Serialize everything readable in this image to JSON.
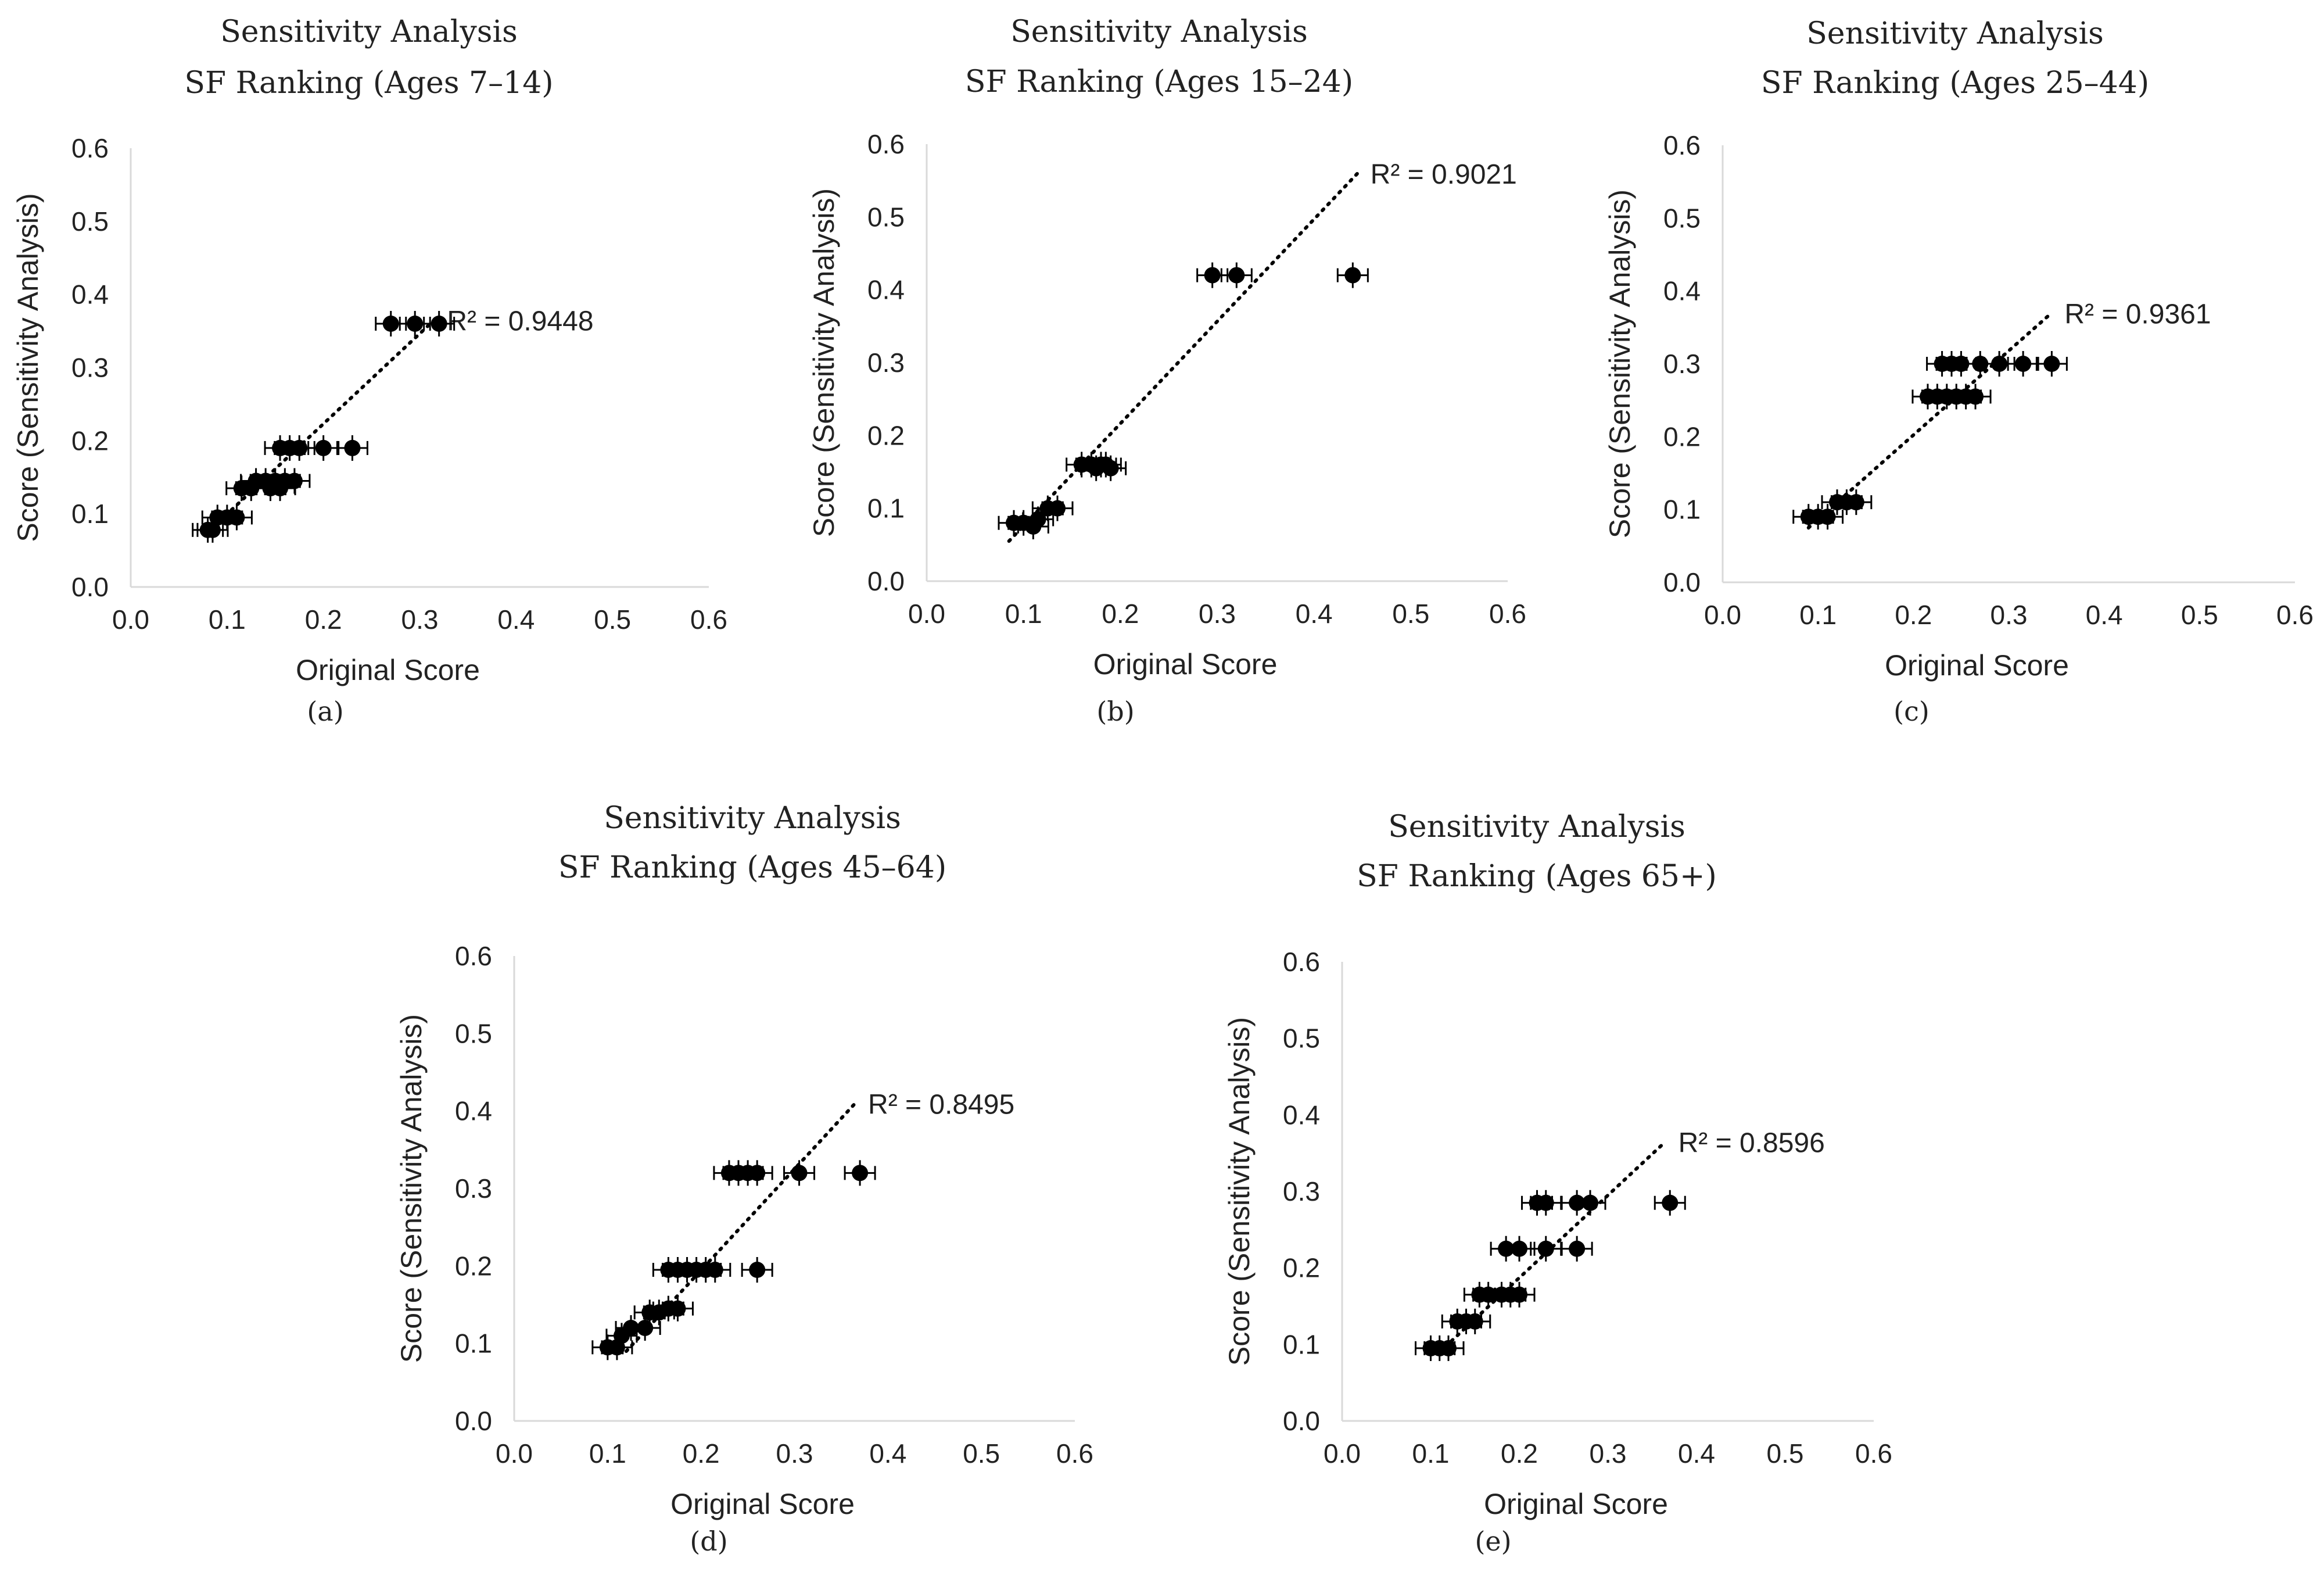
{
  "figure": {
    "point_color": "#000000",
    "axis_color": "#d9d9d9",
    "trend_color": "#000000"
  },
  "chart_data": [
    {
      "id": "a",
      "type": "scatter",
      "title_line1": "Sensitivity Analysis",
      "title_line2": "SF Ranking (Ages 7–14)",
      "xlabel": "Original Score",
      "ylabel": "Score (Sensitivity Analysis)",
      "caption": "(a)",
      "xlim": [
        0,
        0.6
      ],
      "ylim": [
        0,
        0.6
      ],
      "xticks": [
        "0.0",
        "0.1",
        "0.2",
        "0.3",
        "0.4",
        "0.5",
        "0.6"
      ],
      "yticks": [
        "0.0",
        "0.1",
        "0.2",
        "0.3",
        "0.4",
        "0.5",
        "0.6"
      ],
      "r2_label": "R² = 0.9448",
      "trendline": [
        [
          0.08,
          0.075
        ],
        [
          0.315,
          0.365
        ]
      ],
      "points": [
        [
          0.08,
          0.078
        ],
        [
          0.085,
          0.078
        ],
        [
          0.09,
          0.095
        ],
        [
          0.1,
          0.095
        ],
        [
          0.11,
          0.095
        ],
        [
          0.115,
          0.135
        ],
        [
          0.125,
          0.135
        ],
        [
          0.13,
          0.145
        ],
        [
          0.14,
          0.145
        ],
        [
          0.145,
          0.135
        ],
        [
          0.15,
          0.145
        ],
        [
          0.155,
          0.135
        ],
        [
          0.16,
          0.145
        ],
        [
          0.17,
          0.145
        ],
        [
          0.155,
          0.19
        ],
        [
          0.165,
          0.19
        ],
        [
          0.175,
          0.19
        ],
        [
          0.2,
          0.19
        ],
        [
          0.23,
          0.19
        ],
        [
          0.27,
          0.36
        ],
        [
          0.295,
          0.36
        ],
        [
          0.32,
          0.36
        ]
      ]
    },
    {
      "id": "b",
      "type": "scatter",
      "title_line1": "Sensitivity Analysis",
      "title_line2": "SF Ranking (Ages 15–24)",
      "xlabel": "Original Score",
      "ylabel": "Score (Sensitivity Analysis)",
      "caption": "(b)",
      "xlim": [
        0,
        0.6
      ],
      "ylim": [
        0,
        0.6
      ],
      "xticks": [
        "0.0",
        "0.1",
        "0.2",
        "0.3",
        "0.4",
        "0.5",
        "0.6"
      ],
      "yticks": [
        "0.0",
        "0.1",
        "0.2",
        "0.3",
        "0.4",
        "0.5",
        "0.6"
      ],
      "r2_label": "R² = 0.9021",
      "trendline": [
        [
          0.085,
          0.055
        ],
        [
          0.445,
          0.56
        ]
      ],
      "points": [
        [
          0.09,
          0.08
        ],
        [
          0.1,
          0.08
        ],
        [
          0.11,
          0.075
        ],
        [
          0.115,
          0.085
        ],
        [
          0.125,
          0.1
        ],
        [
          0.135,
          0.1
        ],
        [
          0.16,
          0.16
        ],
        [
          0.17,
          0.16
        ],
        [
          0.175,
          0.155
        ],
        [
          0.18,
          0.16
        ],
        [
          0.185,
          0.16
        ],
        [
          0.19,
          0.155
        ],
        [
          0.295,
          0.42
        ],
        [
          0.32,
          0.42
        ],
        [
          0.44,
          0.42
        ]
      ]
    },
    {
      "id": "c",
      "type": "scatter",
      "title_line1": "Sensitivity Analysis",
      "title_line2": "SF Ranking (Ages 25–44)",
      "xlabel": "Original Score",
      "ylabel": "Score (Sensitivity Analysis)",
      "caption": "(c)",
      "xlim": [
        0,
        0.6
      ],
      "ylim": [
        0,
        0.6
      ],
      "xticks": [
        "0.0",
        "0.1",
        "0.2",
        "0.3",
        "0.4",
        "0.5",
        "0.6"
      ],
      "yticks": [
        "0.0",
        "0.1",
        "0.2",
        "0.3",
        "0.4",
        "0.5",
        "0.6"
      ],
      "r2_label": "R² = 0.9361",
      "trendline": [
        [
          0.09,
          0.075
        ],
        [
          0.345,
          0.37
        ]
      ],
      "points": [
        [
          0.09,
          0.09
        ],
        [
          0.1,
          0.09
        ],
        [
          0.11,
          0.09
        ],
        [
          0.12,
          0.11
        ],
        [
          0.13,
          0.11
        ],
        [
          0.14,
          0.11
        ],
        [
          0.215,
          0.255
        ],
        [
          0.225,
          0.255
        ],
        [
          0.235,
          0.255
        ],
        [
          0.245,
          0.255
        ],
        [
          0.255,
          0.255
        ],
        [
          0.265,
          0.255
        ],
        [
          0.23,
          0.3
        ],
        [
          0.24,
          0.3
        ],
        [
          0.25,
          0.3
        ],
        [
          0.27,
          0.3
        ],
        [
          0.29,
          0.3
        ],
        [
          0.315,
          0.3
        ],
        [
          0.345,
          0.3
        ]
      ]
    },
    {
      "id": "d",
      "type": "scatter",
      "title_line1": "Sensitivity Analysis",
      "title_line2": "SF Ranking (Ages 45–64)",
      "xlabel": "Original Score",
      "ylabel": "Score (Sensitivity Analysis)",
      "caption": "(d)",
      "xlim": [
        0,
        0.6
      ],
      "ylim": [
        0,
        0.6
      ],
      "xticks": [
        "0.0",
        "0.1",
        "0.2",
        "0.3",
        "0.4",
        "0.5",
        "0.6"
      ],
      "yticks": [
        "0.0",
        "0.1",
        "0.2",
        "0.3",
        "0.4",
        "0.5",
        "0.6"
      ],
      "r2_label": "R² = 0.8495",
      "trendline": [
        [
          0.12,
          0.09
        ],
        [
          0.365,
          0.41
        ]
      ],
      "points": [
        [
          0.1,
          0.095
        ],
        [
          0.11,
          0.095
        ],
        [
          0.115,
          0.11
        ],
        [
          0.125,
          0.12
        ],
        [
          0.14,
          0.12
        ],
        [
          0.145,
          0.14
        ],
        [
          0.155,
          0.14
        ],
        [
          0.165,
          0.145
        ],
        [
          0.175,
          0.145
        ],
        [
          0.165,
          0.195
        ],
        [
          0.175,
          0.195
        ],
        [
          0.185,
          0.195
        ],
        [
          0.195,
          0.195
        ],
        [
          0.205,
          0.195
        ],
        [
          0.215,
          0.195
        ],
        [
          0.26,
          0.195
        ],
        [
          0.23,
          0.32
        ],
        [
          0.24,
          0.32
        ],
        [
          0.25,
          0.32
        ],
        [
          0.26,
          0.32
        ],
        [
          0.305,
          0.32
        ],
        [
          0.37,
          0.32
        ]
      ]
    },
    {
      "id": "e",
      "type": "scatter",
      "title_line1": "Sensitivity Analysis",
      "title_line2": "SF Ranking (Ages 65+)",
      "xlabel": "Original Score",
      "ylabel": "Score (Sensitivity Analysis)",
      "caption": "(e)",
      "xlim": [
        0,
        0.6
      ],
      "ylim": [
        0,
        0.6
      ],
      "xticks": [
        "0.0",
        "0.1",
        "0.2",
        "0.3",
        "0.4",
        "0.5",
        "0.6"
      ],
      "yticks": [
        "0.0",
        "0.1",
        "0.2",
        "0.3",
        "0.4",
        "0.5",
        "0.6"
      ],
      "r2_label": "R² = 0.8596",
      "trendline": [
        [
          0.11,
          0.09
        ],
        [
          0.365,
          0.365
        ]
      ],
      "points": [
        [
          0.1,
          0.095
        ],
        [
          0.11,
          0.095
        ],
        [
          0.12,
          0.095
        ],
        [
          0.13,
          0.13
        ],
        [
          0.14,
          0.13
        ],
        [
          0.15,
          0.13
        ],
        [
          0.155,
          0.165
        ],
        [
          0.165,
          0.165
        ],
        [
          0.18,
          0.165
        ],
        [
          0.19,
          0.165
        ],
        [
          0.2,
          0.165
        ],
        [
          0.185,
          0.225
        ],
        [
          0.2,
          0.225
        ],
        [
          0.23,
          0.225
        ],
        [
          0.265,
          0.225
        ],
        [
          0.22,
          0.285
        ],
        [
          0.23,
          0.285
        ],
        [
          0.265,
          0.285
        ],
        [
          0.28,
          0.285
        ],
        [
          0.37,
          0.285
        ]
      ]
    }
  ]
}
